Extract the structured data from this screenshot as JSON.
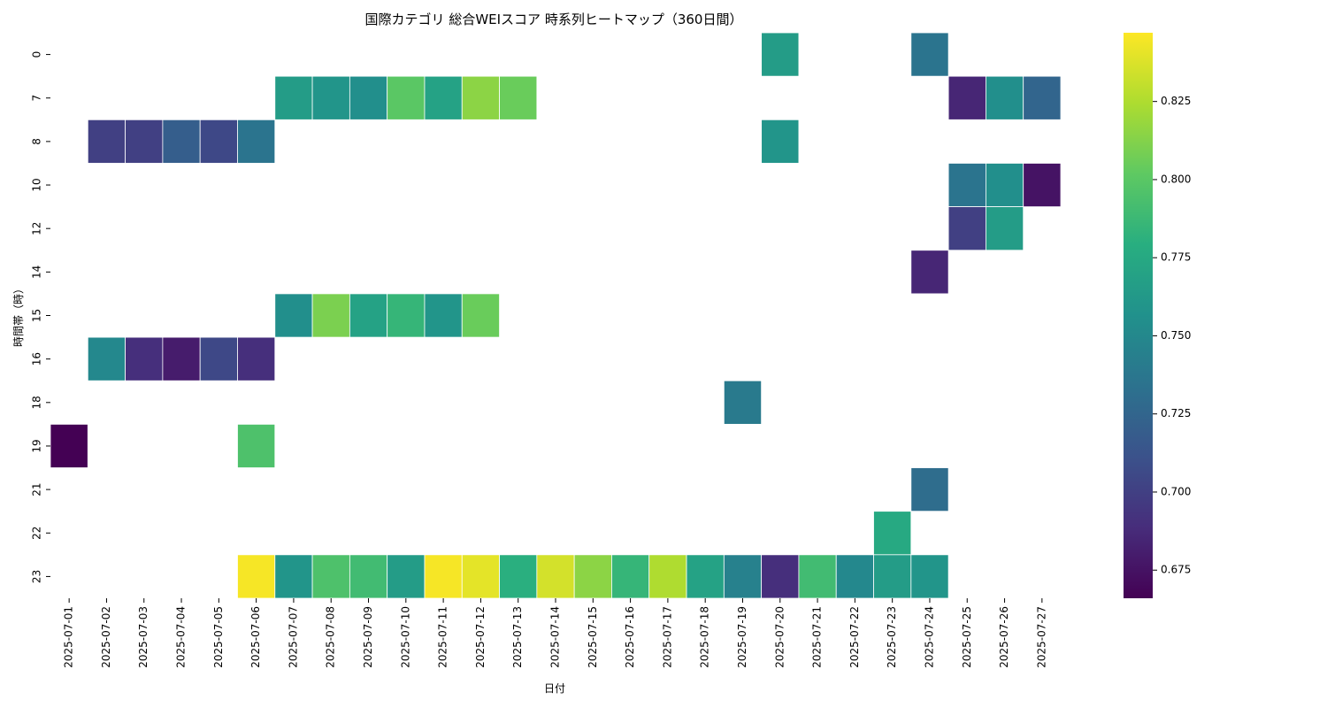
{
  "chart_data": {
    "type": "heatmap",
    "title": "国際カテゴリ 総合WEIスコア 時系列ヒートマップ（360日間）",
    "xlabel": "日付",
    "ylabel": "時間帯（時）",
    "colormap": "viridis",
    "color_range": [
      0.666,
      0.847
    ],
    "colorbar_ticks": [
      "0.675",
      "0.700",
      "0.725",
      "0.750",
      "0.775",
      "0.800",
      "0.825"
    ],
    "x": [
      "2025-07-01",
      "2025-07-02",
      "2025-07-03",
      "2025-07-04",
      "2025-07-05",
      "2025-07-06",
      "2025-07-07",
      "2025-07-08",
      "2025-07-09",
      "2025-07-10",
      "2025-07-11",
      "2025-07-12",
      "2025-07-13",
      "2025-07-14",
      "2025-07-15",
      "2025-07-16",
      "2025-07-17",
      "2025-07-18",
      "2025-07-19",
      "2025-07-20",
      "2025-07-21",
      "2025-07-22",
      "2025-07-23",
      "2025-07-24",
      "2025-07-25",
      "2025-07-26",
      "2025-07-27"
    ],
    "y": [
      "0",
      "7",
      "8",
      "10",
      "12",
      "14",
      "15",
      "16",
      "18",
      "19",
      "21",
      "22",
      "23"
    ],
    "values": [
      [
        null,
        null,
        null,
        null,
        null,
        null,
        null,
        null,
        null,
        null,
        null,
        null,
        null,
        null,
        null,
        null,
        null,
        null,
        null,
        0.765,
        null,
        null,
        null,
        0.735,
        null,
        null,
        null
      ],
      [
        null,
        null,
        null,
        null,
        null,
        null,
        0.765,
        0.76,
        0.755,
        0.8,
        0.77,
        0.815,
        0.805,
        null,
        null,
        null,
        null,
        null,
        null,
        null,
        null,
        null,
        null,
        null,
        0.685,
        0.755,
        0.725
      ],
      [
        null,
        0.7,
        0.7,
        0.72,
        0.705,
        0.735,
        null,
        null,
        null,
        null,
        null,
        null,
        null,
        null,
        null,
        null,
        null,
        null,
        null,
        0.76,
        null,
        null,
        null,
        null,
        null,
        null,
        null
      ],
      [
        null,
        null,
        null,
        null,
        null,
        null,
        null,
        null,
        null,
        null,
        null,
        null,
        null,
        null,
        null,
        null,
        null,
        null,
        null,
        null,
        null,
        null,
        null,
        null,
        0.735,
        0.755,
        0.675
      ],
      [
        null,
        null,
        null,
        null,
        null,
        null,
        null,
        null,
        null,
        null,
        null,
        null,
        null,
        null,
        null,
        null,
        null,
        null,
        null,
        null,
        null,
        null,
        null,
        null,
        0.7,
        0.765,
        null
      ],
      [
        null,
        null,
        null,
        null,
        null,
        null,
        null,
        null,
        null,
        null,
        null,
        null,
        null,
        null,
        null,
        null,
        null,
        null,
        null,
        null,
        null,
        null,
        null,
        0.685,
        null,
        null,
        null
      ],
      [
        null,
        null,
        null,
        null,
        null,
        null,
        0.755,
        0.81,
        0.77,
        0.785,
        0.76,
        0.805,
        null,
        null,
        null,
        null,
        null,
        null,
        null,
        null,
        null,
        null,
        null,
        null,
        null,
        null,
        null
      ],
      [
        null,
        0.75,
        0.69,
        0.68,
        0.705,
        0.69,
        null,
        null,
        null,
        null,
        null,
        null,
        null,
        null,
        null,
        null,
        null,
        null,
        null,
        null,
        null,
        null,
        null,
        null,
        null,
        null,
        null
      ],
      [
        null,
        null,
        null,
        null,
        null,
        null,
        null,
        null,
        null,
        null,
        null,
        null,
        null,
        null,
        null,
        null,
        null,
        null,
        0.74,
        null,
        null,
        null,
        null,
        null,
        null,
        null,
        null
      ],
      [
        0.666,
        null,
        null,
        null,
        null,
        0.795,
        null,
        null,
        null,
        null,
        null,
        null,
        null,
        null,
        null,
        null,
        null,
        null,
        null,
        null,
        null,
        null,
        null,
        null,
        null,
        null,
        null
      ],
      [
        null,
        null,
        null,
        null,
        null,
        null,
        null,
        null,
        null,
        null,
        null,
        null,
        null,
        null,
        null,
        null,
        null,
        null,
        null,
        null,
        null,
        null,
        null,
        0.73,
        null,
        null,
        null
      ],
      [
        null,
        null,
        null,
        null,
        null,
        null,
        null,
        null,
        null,
        null,
        null,
        null,
        null,
        null,
        null,
        null,
        null,
        null,
        null,
        null,
        null,
        null,
        0.775,
        null,
        null,
        null,
        null
      ],
      [
        null,
        null,
        null,
        null,
        null,
        0.845,
        0.76,
        0.795,
        0.79,
        0.765,
        0.845,
        0.84,
        0.78,
        0.835,
        0.815,
        0.785,
        0.825,
        0.77,
        0.745,
        0.69,
        0.79,
        0.75,
        0.765,
        0.76,
        null,
        null,
        null
      ]
    ]
  }
}
